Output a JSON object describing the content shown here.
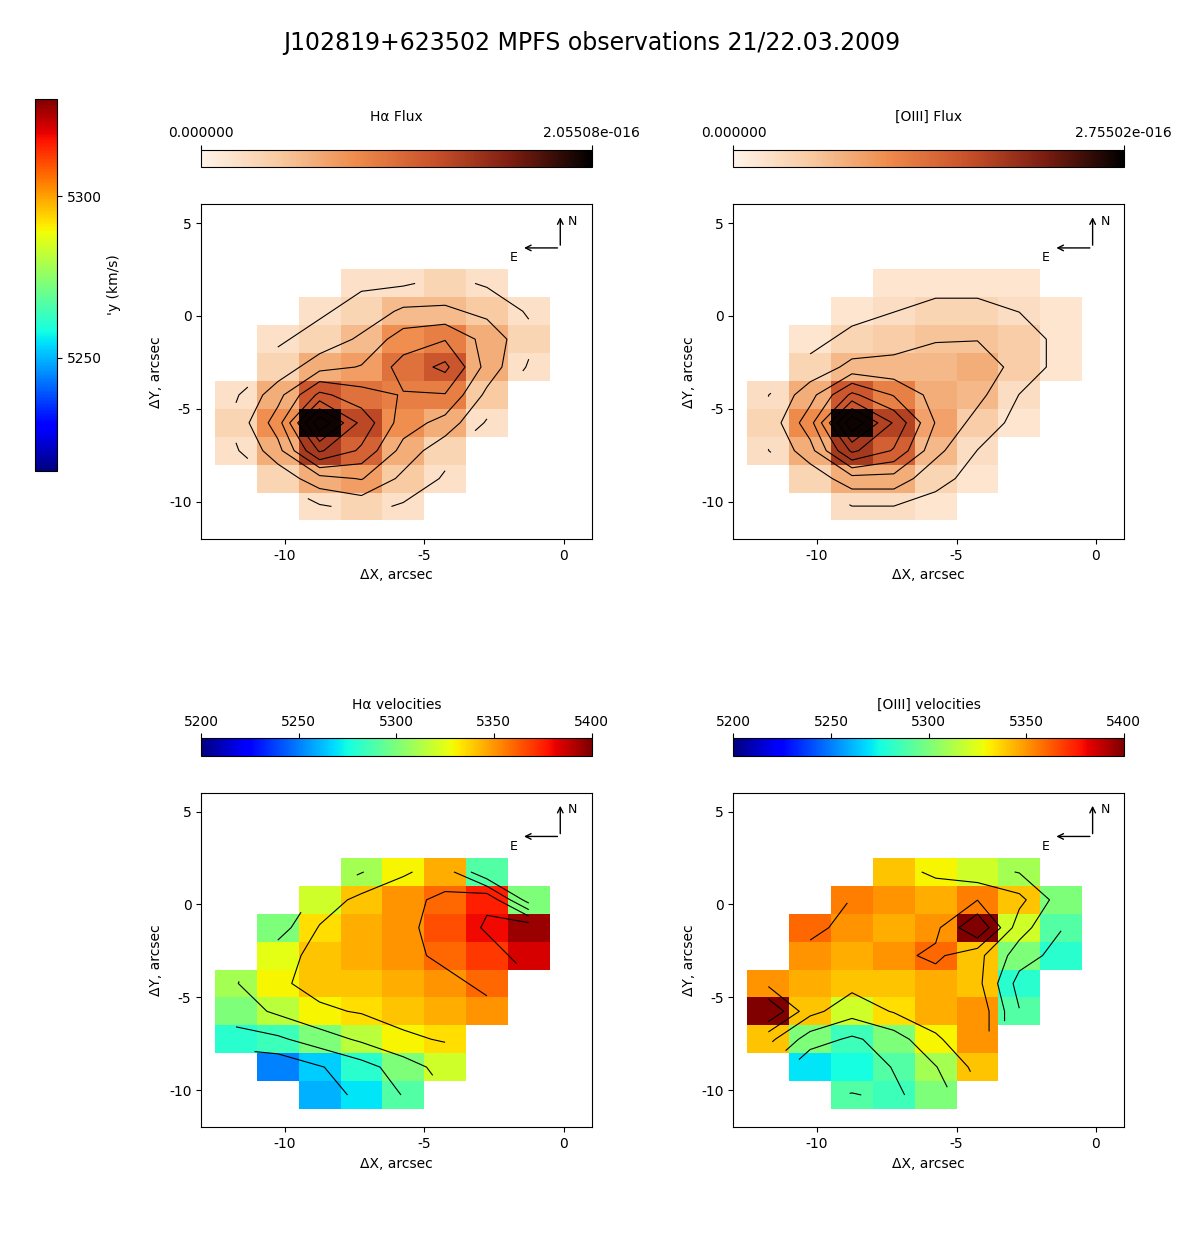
{
  "title": "J102819+623502 MPFS observations 21/22.03.2009",
  "chart_data": [
    {
      "type": "colorbar",
      "colorbar_label": "'y (km/s)",
      "colorbar_range": [
        5215,
        5330
      ],
      "colorbar_ticks": [
        5250,
        5300
      ],
      "color": "jet"
    },
    {
      "type": "heatmap",
      "colorbar_label": "Hα Flux",
      "color": "flux",
      "x_label": "ΔX, arcsec",
      "y_label": "ΔY, arcsec",
      "annotations": [
        "N",
        "E"
      ],
      "xlim": [
        -13,
        1
      ],
      "ylim": [
        -12,
        6
      ],
      "xticks": [
        -10,
        -5,
        0
      ],
      "yticks": [
        -10,
        -5,
        0,
        5
      ],
      "colorbar_range": [
        0,
        2.05508e-16
      ],
      "colorbar_ticks": [
        {
          "value": 0,
          "label": "0.000000"
        },
        {
          "value": 2.05508e-16,
          "label": "2.05508e-016"
        }
      ],
      "x": [
        -11.75,
        -10.25,
        -8.75,
        -7.25,
        -5.75,
        -4.25,
        -2.75,
        -1.25
      ],
      "y": [
        -10.25,
        -8.75,
        -7.25,
        -5.75,
        -4.25,
        -2.75,
        -1.25,
        0.25,
        1.75
      ],
      "cells": [
        [
          null,
          null,
          2e-17,
          3e-17,
          2e-17,
          null,
          null,
          null
        ],
        [
          null,
          3e-17,
          6e-17,
          7e-17,
          4e-17,
          2e-17,
          null,
          null
        ],
        [
          2e-17,
          6e-17,
          1.4e-16,
          1.1e-16,
          6e-17,
          3e-17,
          null,
          null
        ],
        [
          3e-17,
          8e-17,
          2e-16,
          1.3e-16,
          8e-17,
          6e-17,
          2e-17,
          null
        ],
        [
          2e-17,
          6e-17,
          1.2e-16,
          1e-16,
          9e-17,
          9e-17,
          4e-17,
          null
        ],
        [
          null,
          3e-17,
          6e-17,
          7e-17,
          1e-16,
          1.2e-16,
          6e-17,
          2e-17
        ],
        [
          null,
          2e-17,
          3e-17,
          5e-17,
          8e-17,
          9e-17,
          6e-17,
          3e-17
        ],
        [
          null,
          null,
          2e-17,
          3e-17,
          5e-17,
          5e-17,
          4e-17,
          2e-17
        ],
        [
          null,
          null,
          null,
          2e-17,
          2e-17,
          3e-17,
          2e-17,
          null
        ]
      ]
    },
    {
      "type": "heatmap",
      "colorbar_label": "[OIII] Flux",
      "color": "flux",
      "x_label": "ΔX, arcsec",
      "y_label": "ΔY, arcsec",
      "annotations": [
        "N",
        "E"
      ],
      "xlim": [
        -13,
        1
      ],
      "ylim": [
        -12,
        6
      ],
      "xticks": [
        -10,
        -5,
        0
      ],
      "yticks": [
        -10,
        -5,
        0,
        5
      ],
      "colorbar_range": [
        0,
        2.75502e-16
      ],
      "colorbar_ticks": [
        {
          "value": 0,
          "label": "0.000000"
        },
        {
          "value": 2.75502e-16,
          "label": "2.75502e-016"
        }
      ],
      "x": [
        -11.75,
        -10.25,
        -8.75,
        -7.25,
        -5.75,
        -4.25,
        -2.75,
        -1.25
      ],
      "y": [
        -10.25,
        -8.75,
        -7.25,
        -5.75,
        -4.25,
        -2.75,
        -1.25,
        0.25,
        1.75
      ],
      "cells": [
        [
          null,
          null,
          3e-17,
          3e-17,
          2e-17,
          null,
          null,
          null
        ],
        [
          null,
          4e-17,
          8e-17,
          8e-17,
          4e-17,
          2e-17,
          null,
          null
        ],
        [
          3e-17,
          8e-17,
          1.9e-16,
          1.5e-16,
          7e-17,
          3e-17,
          null,
          null
        ],
        [
          4e-17,
          1.1e-16,
          2.7e-16,
          1.8e-16,
          9e-17,
          5e-17,
          2e-17,
          null
        ],
        [
          3e-17,
          8e-17,
          1.6e-16,
          1.2e-16,
          8e-17,
          7e-17,
          3e-17,
          null
        ],
        [
          null,
          4e-17,
          7e-17,
          7e-17,
          7e-17,
          8e-17,
          5e-17,
          2e-17
        ],
        [
          null,
          2e-17,
          4e-17,
          5e-17,
          6e-17,
          6e-17,
          5e-17,
          2e-17
        ],
        [
          null,
          null,
          2e-17,
          3e-17,
          4e-17,
          4e-17,
          3e-17,
          2e-17
        ],
        [
          null,
          null,
          null,
          2e-17,
          2e-17,
          2e-17,
          2e-17,
          null
        ]
      ]
    },
    {
      "type": "heatmap",
      "colorbar_label": "Hα velocities",
      "color": "jet",
      "x_label": "ΔX, arcsec",
      "y_label": "ΔY, arcsec",
      "annotations": [
        "N",
        "E"
      ],
      "xlim": [
        -13,
        1
      ],
      "ylim": [
        -12,
        6
      ],
      "xticks": [
        -10,
        -5,
        0
      ],
      "yticks": [
        -10,
        -5,
        0,
        5
      ],
      "colorbar_range": [
        5200,
        5400
      ],
      "colorbar_ticks": [
        5200,
        5250,
        5300,
        5350,
        5400
      ],
      "x": [
        -11.75,
        -10.25,
        -8.75,
        -7.25,
        -5.75,
        -4.25,
        -2.75,
        -1.25
      ],
      "y": [
        -10.25,
        -8.75,
        -7.25,
        -5.75,
        -4.25,
        -2.75,
        -1.25,
        0.25,
        1.75
      ],
      "cells": [
        [
          null,
          null,
          5260,
          5270,
          5290,
          null,
          null,
          null
        ],
        [
          null,
          5250,
          5265,
          5280,
          5300,
          5320,
          null,
          null
        ],
        [
          5280,
          5285,
          5300,
          5315,
          5330,
          5335,
          null,
          null
        ],
        [
          5300,
          5315,
          5330,
          5335,
          5340,
          5345,
          5350,
          null
        ],
        [
          5310,
          5330,
          5340,
          5340,
          5345,
          5350,
          5360,
          null
        ],
        [
          null,
          5325,
          5340,
          5345,
          5350,
          5360,
          5370,
          5385
        ],
        [
          null,
          5300,
          5335,
          5345,
          5350,
          5365,
          5380,
          5395
        ],
        [
          null,
          null,
          5320,
          5340,
          5350,
          5360,
          5375,
          5300
        ],
        [
          null,
          null,
          null,
          5310,
          5330,
          5345,
          5290,
          null
        ]
      ]
    },
    {
      "type": "heatmap",
      "colorbar_label": "[OIII] velocities",
      "color": "jet",
      "x_label": "ΔX, arcsec",
      "y_label": "ΔY, arcsec",
      "annotations": [
        "N",
        "E"
      ],
      "xlim": [
        -13,
        1
      ],
      "ylim": [
        -12,
        6
      ],
      "xticks": [
        -10,
        -5,
        0
      ],
      "yticks": [
        -10,
        -5,
        0,
        5
      ],
      "colorbar_range": [
        5200,
        5400
      ],
      "colorbar_ticks": [
        5200,
        5250,
        5300,
        5350,
        5400
      ],
      "x": [
        -11.75,
        -10.25,
        -8.75,
        -7.25,
        -5.75,
        -4.25,
        -2.75,
        -1.25
      ],
      "y": [
        -10.25,
        -8.75,
        -7.25,
        -5.75,
        -4.25,
        -2.75,
        -1.25,
        0.25,
        1.75
      ],
      "cells": [
        [
          null,
          null,
          5290,
          5285,
          5300,
          null,
          null,
          null
        ],
        [
          null,
          5270,
          5275,
          5290,
          5310,
          5340,
          null,
          null
        ],
        [
          5340,
          5300,
          5285,
          5300,
          5330,
          5350,
          null,
          null
        ],
        [
          5400,
          5340,
          5320,
          5335,
          5345,
          5350,
          5290,
          null
        ],
        [
          5350,
          5345,
          5340,
          5340,
          5345,
          5340,
          5280,
          null
        ],
        [
          null,
          5350,
          5345,
          5350,
          5360,
          5340,
          5300,
          5280
        ],
        [
          null,
          5360,
          5350,
          5345,
          5350,
          5400,
          5320,
          5290
        ],
        [
          null,
          null,
          5355,
          5350,
          5345,
          5355,
          5340,
          5300
        ],
        [
          null,
          null,
          null,
          5340,
          5330,
          5320,
          5310,
          null
        ]
      ]
    }
  ]
}
